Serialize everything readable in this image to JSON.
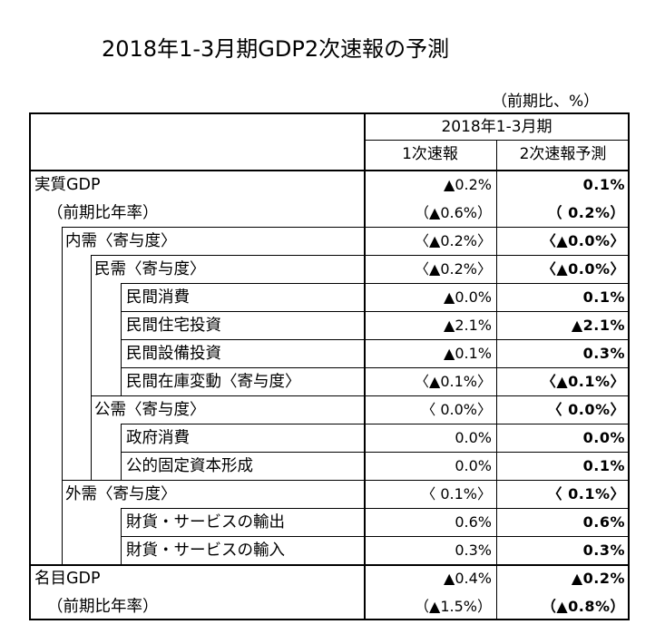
{
  "title": "2018年1-3月期GDP2次速報の予測",
  "unit": "（前期比、%）",
  "header": {
    "period": "2018年1-3月期",
    "col1": "1次速報",
    "col2": "2次速報予測"
  },
  "rows": [
    {
      "label": "実質GDP",
      "first": "▲0.2%",
      "second": "0.1%"
    },
    {
      "label": "（前期比年率）",
      "first": "（▲0.6%）",
      "second": "（ 0.2%）"
    },
    {
      "label": "内需〈寄与度〉",
      "first": "〈▲0.2%〉",
      "second": "〈▲0.0%〉"
    },
    {
      "label": "民需〈寄与度〉",
      "first": "〈▲0.2%〉",
      "second": "〈▲0.0%〉"
    },
    {
      "label": "民間消費",
      "first": "▲0.0%",
      "second": "0.1%"
    },
    {
      "label": "民間住宅投資",
      "first": "▲2.1%",
      "second": "▲2.1%"
    },
    {
      "label": "民間設備投資",
      "first": "▲0.1%",
      "second": "0.3%"
    },
    {
      "label": "民間在庫変動〈寄与度〉",
      "first": "〈▲0.1%〉",
      "second": "〈▲0.1%〉"
    },
    {
      "label": "公需〈寄与度〉",
      "first": "〈 0.0%〉",
      "second": "〈 0.0%〉"
    },
    {
      "label": "政府消費",
      "first": "0.0%",
      "second": "0.0%"
    },
    {
      "label": "公的固定資本形成",
      "first": "0.0%",
      "second": "0.1%"
    },
    {
      "label": "外需〈寄与度〉",
      "first": "〈 0.1%〉",
      "second": "〈 0.1%〉"
    },
    {
      "label": "財貨・サービスの輸出",
      "first": "0.6%",
      "second": "0.6%"
    },
    {
      "label": "財貨・サービスの輸入",
      "first": "0.3%",
      "second": "0.3%"
    },
    {
      "label": "名目GDP",
      "first": "▲0.4%",
      "second": "▲0.2%"
    },
    {
      "label": "（前期比年率）",
      "first": "（▲1.5%）",
      "second": "（▲0.8%）"
    }
  ]
}
